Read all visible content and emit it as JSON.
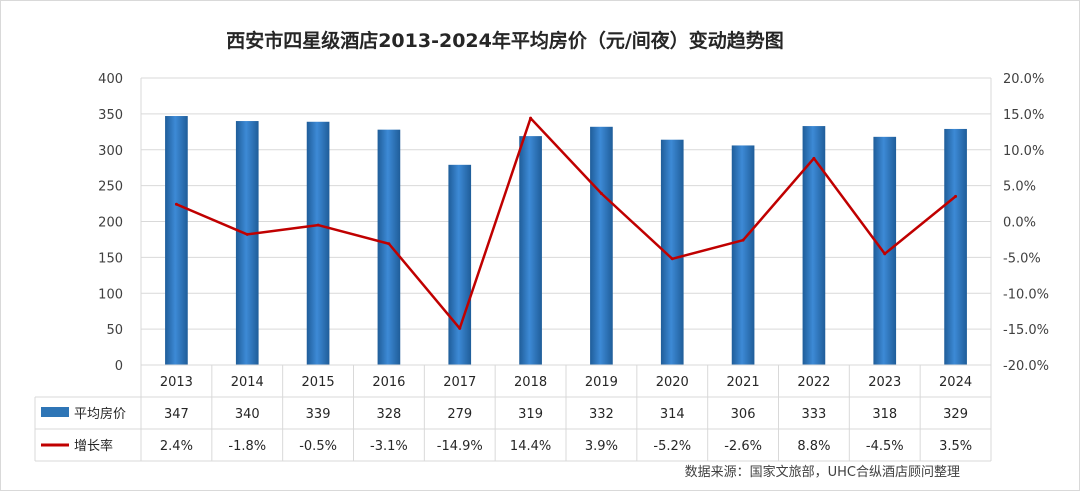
{
  "chart_data": {
    "type": "bar",
    "title": "西安市四星级酒店2013-2024年平均房价（元/间夜）变动趋势图",
    "categories": [
      "2013",
      "2014",
      "2015",
      "2016",
      "2017",
      "2018",
      "2019",
      "2020",
      "2021",
      "2022",
      "2023",
      "2024"
    ],
    "series": [
      {
        "name": "平均房价",
        "type": "bar",
        "axis": "left",
        "color": "#2e75b6",
        "values": [
          347,
          340,
          339,
          328,
          279,
          319,
          332,
          314,
          306,
          333,
          318,
          329
        ],
        "labels": [
          "347",
          "340",
          "339",
          "328",
          "279",
          "319",
          "332",
          "314",
          "306",
          "333",
          "318",
          "329"
        ]
      },
      {
        "name": "增长率",
        "type": "line",
        "axis": "right",
        "color": "#c00000",
        "values": [
          2.4,
          -1.8,
          -0.5,
          -3.1,
          -14.9,
          14.4,
          3.9,
          -5.2,
          -2.6,
          8.8,
          -4.5,
          3.5
        ],
        "labels": [
          "2.4%",
          "-1.8%",
          "-0.5%",
          "-3.1%",
          "-14.9%",
          "14.4%",
          "3.9%",
          "-5.2%",
          "-2.6%",
          "8.8%",
          "-4.5%",
          "3.5%"
        ]
      }
    ],
    "ylim": [
      0,
      400
    ],
    "yticks": [
      "0",
      "50",
      "100",
      "150",
      "200",
      "250",
      "300",
      "350",
      "400"
    ],
    "y2lim": [
      -20,
      20
    ],
    "y2ticks": [
      "-20.0%",
      "-15.0%",
      "-10.0%",
      "-5.0%",
      "0.0%",
      "5.0%",
      "10.0%",
      "15.0%",
      "20.0%"
    ],
    "grid": true,
    "legend": "data-table"
  },
  "source": "数据来源：国家文旅部，UHC合纵酒店顾问整理",
  "colors": {
    "bar": "#2e75b6",
    "line": "#c00000",
    "grid": "#d9d9d9"
  }
}
